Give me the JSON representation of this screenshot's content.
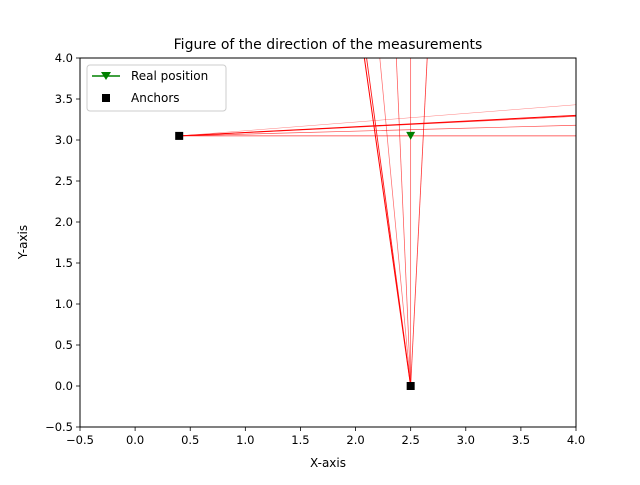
{
  "chart_data": {
    "type": "scatter",
    "title": "Figure of the direction of the measurements",
    "xlabel": "X-axis",
    "ylabel": "Y-axis",
    "xlim": [
      -0.5,
      4.0
    ],
    "ylim": [
      -0.5,
      4.0
    ],
    "grid": false,
    "legend_position": "top-left",
    "x_ticks": [
      "−0.5",
      "0.0",
      "0.5",
      "1.0",
      "1.5",
      "2.0",
      "2.5",
      "3.0",
      "3.5",
      "4.0"
    ],
    "y_ticks": [
      "−0.5",
      "0.0",
      "0.5",
      "1.0",
      "1.5",
      "2.0",
      "2.5",
      "3.0",
      "3.5",
      "4.0"
    ],
    "x_tick_values": [
      -0.5,
      0.0,
      0.5,
      1.0,
      1.5,
      2.0,
      2.5,
      3.0,
      3.5,
      4.0
    ],
    "y_tick_values": [
      -0.5,
      0.0,
      0.5,
      1.0,
      1.5,
      2.0,
      2.5,
      3.0,
      3.5,
      4.0
    ],
    "series": [
      {
        "name": "Real position",
        "marker": "triangle-down",
        "color": "#008000",
        "points": [
          {
            "x": 2.5,
            "y": 3.05
          }
        ]
      },
      {
        "name": "Anchors",
        "marker": "square",
        "color": "#000000",
        "points": [
          {
            "x": 0.4,
            "y": 3.05
          },
          {
            "x": 2.5,
            "y": 0.0
          }
        ]
      }
    ],
    "measurement_lines": {
      "color": "#ff0000",
      "rays": [
        {
          "from": [
            2.5,
            0.0
          ],
          "to": [
            2.08,
            4.0
          ],
          "width": 1.0,
          "opacity": 1.0
        },
        {
          "from": [
            2.5,
            0.0
          ],
          "to": [
            2.1,
            4.0
          ],
          "width": 0.9,
          "opacity": 0.9
        },
        {
          "from": [
            2.5,
            0.0
          ],
          "to": [
            2.22,
            4.0
          ],
          "width": 0.7,
          "opacity": 0.6
        },
        {
          "from": [
            2.5,
            0.0
          ],
          "to": [
            2.37,
            4.0
          ],
          "width": 0.7,
          "opacity": 0.7
        },
        {
          "from": [
            2.5,
            0.0
          ],
          "to": [
            2.5,
            4.0
          ],
          "width": 0.7,
          "opacity": 0.7
        },
        {
          "from": [
            2.5,
            0.0
          ],
          "to": [
            2.65,
            4.0
          ],
          "width": 0.8,
          "opacity": 0.8
        },
        {
          "from": [
            0.4,
            3.05
          ],
          "to": [
            4.0,
            3.43
          ],
          "width": 0.5,
          "opacity": 0.5
        },
        {
          "from": [
            0.4,
            3.05
          ],
          "to": [
            4.0,
            3.3
          ],
          "width": 1.0,
          "opacity": 1.0
        },
        {
          "from": [
            0.4,
            3.05
          ],
          "to": [
            4.0,
            3.29
          ],
          "width": 0.8,
          "opacity": 0.8
        },
        {
          "from": [
            0.4,
            3.05
          ],
          "to": [
            4.0,
            3.18
          ],
          "width": 0.7,
          "opacity": 0.7
        },
        {
          "from": [
            0.4,
            3.05
          ],
          "to": [
            4.0,
            3.05
          ],
          "width": 0.7,
          "opacity": 0.8
        }
      ]
    }
  }
}
